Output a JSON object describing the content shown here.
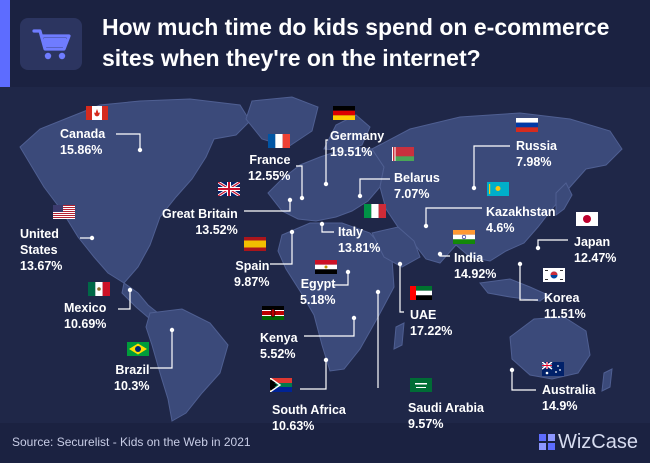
{
  "title_line1": "How much time do kids spend on e-commerce",
  "title_line2": "sites when they're on the internet?",
  "source": "Source: Securelist - Kids on the Web in 2021",
  "brand": "WizCase",
  "colors": {
    "background": "#1f2748",
    "header": "#1b2241",
    "accent": "#5d6cff",
    "land": "#3b4a7a",
    "leader": "#ffffff"
  },
  "icons": {
    "header": "shopping-cart-icon",
    "logo": "wizcase-logo-icon"
  },
  "chart_data": {
    "type": "table",
    "title": "How much time do kids spend on e-commerce sites when they're on the internet?",
    "unit": "%",
    "entries": [
      {
        "country": "Canada",
        "value": 15.86,
        "value_label": "15.86%"
      },
      {
        "country": "United States",
        "value": 13.67,
        "value_label": "13.67%"
      },
      {
        "country": "Mexico",
        "value": 10.69,
        "value_label": "10.69%"
      },
      {
        "country": "Brazil",
        "value": 10.3,
        "value_label": "10.3%"
      },
      {
        "country": "France",
        "value": 12.55,
        "value_label": "12.55%"
      },
      {
        "country": "Great Britain",
        "value": 13.52,
        "value_label": "13.52%"
      },
      {
        "country": "Spain",
        "value": 9.87,
        "value_label": "9.87%"
      },
      {
        "country": "Germany",
        "value": 19.51,
        "value_label": "19.51%"
      },
      {
        "country": "Belarus",
        "value": 7.07,
        "value_label": "7.07%"
      },
      {
        "country": "Italy",
        "value": 13.81,
        "value_label": "13.81%"
      },
      {
        "country": "Egypt",
        "value": 5.18,
        "value_label": "5.18%"
      },
      {
        "country": "Kenya",
        "value": 5.52,
        "value_label": "5.52%"
      },
      {
        "country": "South Africa",
        "value": 10.63,
        "value_label": "10.63%"
      },
      {
        "country": "Saudi Arabia",
        "value": 9.57,
        "value_label": "9.57%"
      },
      {
        "country": "UAE",
        "value": 17.22,
        "value_label": "17.22%"
      },
      {
        "country": "India",
        "value": 14.92,
        "value_label": "14.92%"
      },
      {
        "country": "Kazakhstan",
        "value": 4.6,
        "value_label": "4.6%"
      },
      {
        "country": "Russia",
        "value": 7.98,
        "value_label": "7.98%"
      },
      {
        "country": "Japan",
        "value": 12.47,
        "value_label": "12.47%"
      },
      {
        "country": "Korea",
        "value": 11.51,
        "value_label": "11.51%"
      },
      {
        "country": "Australia",
        "value": 14.9,
        "value_label": "14.9%"
      }
    ]
  }
}
